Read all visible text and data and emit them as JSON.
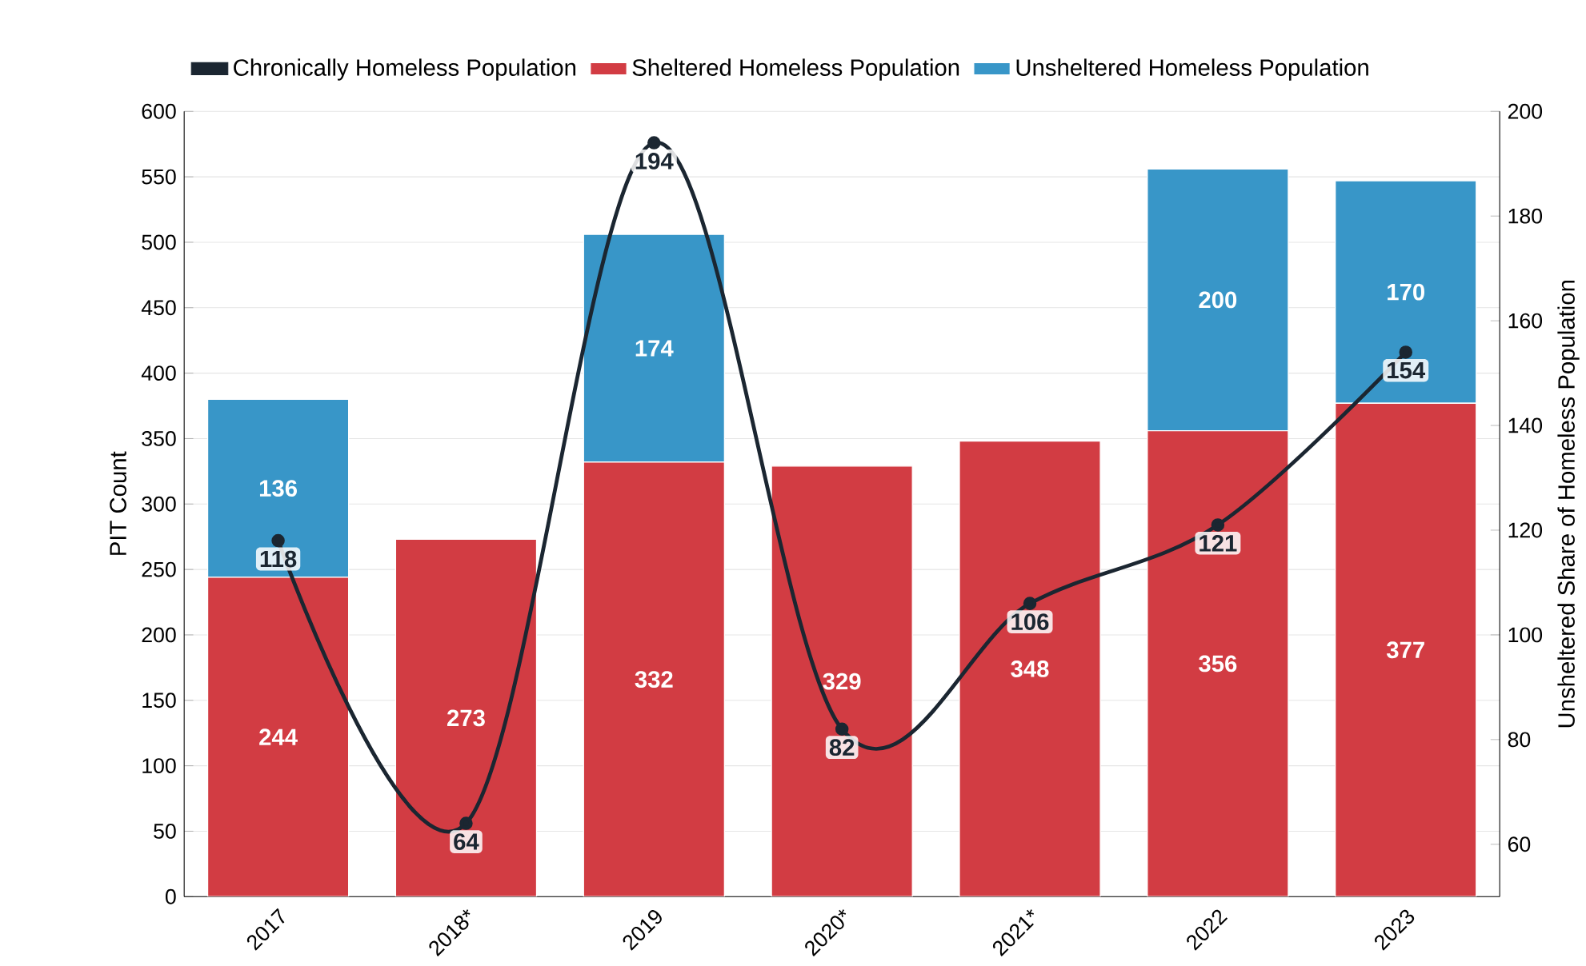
{
  "chart_data": {
    "type": "bar",
    "stacked": true,
    "categories": [
      "2017",
      "2018*",
      "2019",
      "2020*",
      "2021*",
      "2022",
      "2023"
    ],
    "ylabel": "PIT Count",
    "y2label": "Unsheltered Share of Homeless Population",
    "ylim": [
      0,
      600
    ],
    "yticks": [
      0,
      50,
      100,
      150,
      200,
      250,
      300,
      350,
      400,
      450,
      500,
      550,
      600
    ],
    "y2lim": [
      50,
      200
    ],
    "y2ticks": [
      60,
      80,
      100,
      120,
      140,
      160,
      180,
      200
    ],
    "grid": "y",
    "legend": "top left",
    "data_labels": true,
    "series": [
      {
        "name": "Chronically Homeless Population",
        "type": "line",
        "axis": "y2",
        "color": "#1b2631",
        "marker": "circle",
        "values": [
          118,
          64,
          194,
          82,
          106,
          121,
          154
        ]
      },
      {
        "name": "Sheltered Homeless Population",
        "color": "#d23c43",
        "values": [
          244,
          273,
          332,
          329,
          348,
          356,
          377
        ]
      },
      {
        "name": "Unsheltered Homeless Population",
        "color": "#3896c8",
        "values": [
          136,
          null,
          174,
          null,
          null,
          200,
          170
        ]
      }
    ]
  }
}
